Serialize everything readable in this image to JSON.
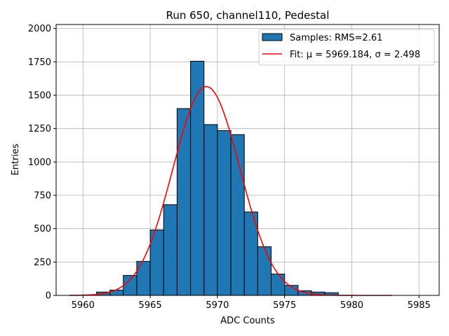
{
  "chart_data": {
    "type": "bar",
    "title": "Run 650, channel110, Pedestal",
    "xlabel": "ADC Counts",
    "ylabel": "Entries",
    "xlim": [
      5958,
      5986.5
    ],
    "ylim": [
      0,
      2030
    ],
    "xticks": [
      5960,
      5965,
      5970,
      5975,
      5980,
      5985
    ],
    "yticks": [
      0,
      250,
      500,
      750,
      1000,
      1250,
      1500,
      1750,
      2000
    ],
    "grid": true,
    "legend_position": "top-right",
    "bin_width": 1,
    "series": [
      {
        "name": "Samples: RMS=2.61",
        "kind": "histogram",
        "color": "#1f77b4",
        "edge_color": "#000000",
        "bin_starts": [
          5961,
          5962,
          5963,
          5964,
          5965,
          5966,
          5967,
          5968,
          5969,
          5970,
          5971,
          5972,
          5973,
          5974,
          5975,
          5976,
          5977,
          5978
        ],
        "values": [
          25,
          40,
          150,
          255,
          490,
          680,
          1400,
          1755,
          1280,
          1235,
          1205,
          625,
          365,
          160,
          75,
          35,
          25,
          20
        ]
      },
      {
        "name": "Fit: μ = 5969.184, σ = 2.498",
        "kind": "gaussian-line",
        "color": "#ff0000",
        "mu": 5969.184,
        "sigma": 2.498,
        "amplitude": 1565,
        "x_range": [
          5959,
          5983
        ]
      }
    ]
  }
}
